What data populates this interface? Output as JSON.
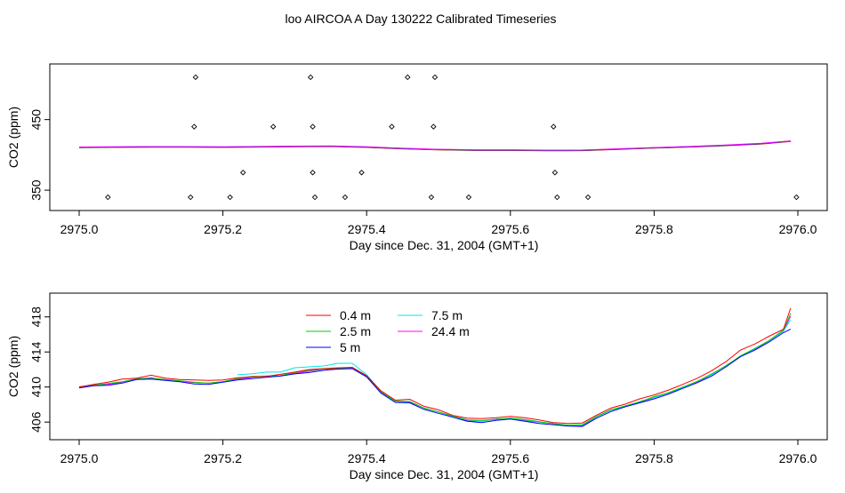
{
  "title": "loo AIRCOA A  Day 130222  Calibrated Timeseries",
  "chart_data": [
    {
      "type": "scatter",
      "panel": "top",
      "xlabel": "Day since Dec. 31, 2004 (GMT+1)",
      "ylabel": "CO2 (ppm)",
      "xlim": [
        2975.0,
        2976.0
      ],
      "ylim": [
        330,
        520
      ],
      "xticks": [
        2975.0,
        2975.2,
        2975.4,
        2975.6,
        2975.8,
        2976.0
      ],
      "xtick_labels": [
        "2975.0",
        "2975.2",
        "2975.4",
        "2975.6",
        "2975.8",
        "2976.0"
      ],
      "yticks": [
        350,
        450
      ],
      "ytick_labels": [
        "350",
        "450"
      ],
      "line": {
        "x": [
          2975.0,
          2975.05,
          2975.1,
          2975.15,
          2975.2,
          2975.25,
          2975.3,
          2975.35,
          2975.4,
          2975.45,
          2975.5,
          2975.55,
          2975.6,
          2975.65,
          2975.7,
          2975.75,
          2975.8,
          2975.85,
          2975.9,
          2975.95,
          2975.99
        ],
        "y": [
          410.2,
          410.5,
          410.9,
          410.8,
          410.5,
          411.0,
          411.5,
          411.8,
          410.5,
          408.5,
          407.0,
          406.3,
          406.3,
          405.8,
          406.0,
          407.8,
          409.5,
          411.0,
          413.0,
          415.5,
          419.0
        ]
      },
      "points": [
        {
          "x": 2975.04,
          "y": 340
        },
        {
          "x": 2975.155,
          "y": 340
        },
        {
          "x": 2975.16,
          "y": 440
        },
        {
          "x": 2975.162,
          "y": 510
        },
        {
          "x": 2975.21,
          "y": 340
        },
        {
          "x": 2975.228,
          "y": 375
        },
        {
          "x": 2975.27,
          "y": 440
        },
        {
          "x": 2975.322,
          "y": 510
        },
        {
          "x": 2975.325,
          "y": 440
        },
        {
          "x": 2975.325,
          "y": 375
        },
        {
          "x": 2975.328,
          "y": 340
        },
        {
          "x": 2975.37,
          "y": 340
        },
        {
          "x": 2975.393,
          "y": 375
        },
        {
          "x": 2975.435,
          "y": 440
        },
        {
          "x": 2975.457,
          "y": 510
        },
        {
          "x": 2975.49,
          "y": 340
        },
        {
          "x": 2975.493,
          "y": 440
        },
        {
          "x": 2975.495,
          "y": 510
        },
        {
          "x": 2975.542,
          "y": 340
        },
        {
          "x": 2975.66,
          "y": 440
        },
        {
          "x": 2975.662,
          "y": 375
        },
        {
          "x": 2975.665,
          "y": 340
        },
        {
          "x": 2975.708,
          "y": 340
        },
        {
          "x": 2975.998,
          "y": 340
        }
      ]
    },
    {
      "type": "line",
      "panel": "bottom",
      "xlabel": "Day since Dec. 31, 2004 (GMT+1)",
      "ylabel": "CO2 (ppm)",
      "xlim": [
        2975.0,
        2976.0
      ],
      "ylim": [
        404.7,
        420.0
      ],
      "xticks": [
        2975.0,
        2975.2,
        2975.4,
        2975.6,
        2975.8,
        2976.0
      ],
      "xtick_labels": [
        "2975.0",
        "2975.2",
        "2975.4",
        "2975.6",
        "2975.8",
        "2976.0"
      ],
      "yticks": [
        406,
        410,
        414,
        418
      ],
      "ytick_labels": [
        "406",
        "410",
        "414",
        "418"
      ],
      "legend": {
        "placement": "top-center",
        "columns": [
          [
            {
              "name": "0.4 m",
              "color": "#ff0000"
            },
            {
              "name": "2.5 m",
              "color": "#00cd00"
            },
            {
              "name": "5 m",
              "color": "#0000ff"
            }
          ],
          [
            {
              "name": "7.5 m",
              "color": "#00e5ee"
            },
            {
              "name": "24.4 m",
              "color": "#ff00ff"
            }
          ]
        ]
      },
      "base_series": {
        "x": [
          2975.0,
          2975.02,
          2975.04,
          2975.06,
          2975.08,
          2975.1,
          2975.12,
          2975.14,
          2975.16,
          2975.18,
          2975.2,
          2975.22,
          2975.24,
          2975.26,
          2975.28,
          2975.3,
          2975.32,
          2975.34,
          2975.36,
          2975.38,
          2975.4,
          2975.42,
          2975.44,
          2975.46,
          2975.48,
          2975.5,
          2975.52,
          2975.54,
          2975.56,
          2975.58,
          2975.6,
          2975.62,
          2975.64,
          2975.66,
          2975.68,
          2975.7,
          2975.72,
          2975.74,
          2975.76,
          2975.78,
          2975.8,
          2975.82,
          2975.84,
          2975.86,
          2975.88,
          2975.9,
          2975.92,
          2975.94,
          2975.96,
          2975.98,
          2975.99
        ],
        "y": [
          410.0,
          410.2,
          410.3,
          410.6,
          410.9,
          411.0,
          410.8,
          410.7,
          410.5,
          410.4,
          410.6,
          410.9,
          411.1,
          411.2,
          411.3,
          411.6,
          411.8,
          412.0,
          412.1,
          412.2,
          411.2,
          409.4,
          408.3,
          408.3,
          407.6,
          407.1,
          406.6,
          406.2,
          406.1,
          406.3,
          406.4,
          406.2,
          406.0,
          405.8,
          405.6,
          405.6,
          406.6,
          407.3,
          407.8,
          408.3,
          408.8,
          409.3,
          409.9,
          410.6,
          411.4,
          412.4,
          413.5,
          414.3,
          415.3,
          416.3,
          417.2
        ]
      },
      "series": [
        {
          "name": "0.4 m",
          "offsets": [
            0.0,
            0.1,
            0.25,
            0.3,
            0.1,
            0.35,
            0.2,
            0.15,
            0.3,
            0.35,
            0.2,
            0.15,
            0.05,
            0.0,
            0.15,
            0.1,
            0.2,
            0.1,
            0.1,
            0.05,
            0.1,
            0.15,
            0.2,
            0.3,
            0.2,
            0.3,
            0.15,
            0.25,
            0.3,
            0.2,
            0.25,
            0.3,
            0.25,
            0.15,
            0.25,
            0.3,
            0.2,
            0.3,
            0.25,
            0.35,
            0.3,
            0.35,
            0.4,
            0.4,
            0.45,
            0.5,
            0.7,
            0.6,
            0.5,
            0.3,
            1.8
          ]
        },
        {
          "name": "2.5 m",
          "offsets": [
            0.05,
            0.0,
            0.1,
            0.0,
            0.05,
            0.0,
            0.05,
            0.0,
            0.05,
            0.05,
            0.0,
            0.05,
            0.1,
            0.05,
            0.0,
            0.05,
            0.1,
            0.05,
            0.0,
            0.05,
            0.0,
            0.05,
            0.1,
            0.05,
            0.0,
            0.05,
            0.1,
            0.05,
            0.1,
            0.0,
            0.05,
            0.1,
            0.05,
            0.0,
            0.05,
            0.1,
            0.05,
            0.1,
            0.05,
            0.0,
            0.1,
            0.05,
            0.1,
            0.05,
            0.1,
            0.0,
            0.05,
            0.1,
            0.0,
            0.2,
            1.2
          ]
        },
        {
          "name": "5 m",
          "offsets": [
            -0.1,
            -0.05,
            -0.1,
            -0.15,
            -0.05,
            -0.1,
            -0.05,
            -0.1,
            -0.15,
            -0.1,
            -0.05,
            -0.1,
            -0.15,
            -0.1,
            -0.05,
            -0.1,
            -0.15,
            -0.1,
            -0.05,
            -0.1,
            -0.05,
            -0.1,
            -0.05,
            -0.1,
            -0.15,
            -0.1,
            -0.05,
            -0.1,
            -0.15,
            -0.1,
            -0.05,
            -0.1,
            -0.15,
            -0.1,
            -0.05,
            -0.1,
            -0.15,
            -0.1,
            -0.05,
            -0.1,
            -0.15,
            -0.1,
            -0.05,
            -0.1,
            -0.15,
            -0.1,
            -0.05,
            -0.1,
            -0.15,
            -0.1,
            -0.6
          ]
        },
        {
          "name": "7.5 m",
          "start_index": 11,
          "offsets": [
            0.0,
            0.0,
            0.0,
            0.0,
            0.0,
            0.0,
            0.0,
            0.0,
            0.0,
            0.0,
            0.0,
            0.5,
            0.4,
            0.5,
            0.4,
            0.6,
            0.5,
            0.4,
            0.6,
            0.5,
            0.2,
            0.1,
            0.0,
            0.05,
            0.0,
            0.05,
            0.0,
            0.05,
            0.0,
            0.05,
            0.0,
            0.05,
            0.0,
            0.05,
            0.0,
            0.05,
            0.0,
            0.05,
            0.0,
            0.05,
            0.0,
            0.05,
            0.0,
            0.05,
            0.0,
            0.05,
            0.0,
            0.05,
            0.0,
            0.05,
            0.5
          ]
        },
        {
          "name": "24.4 m",
          "offsets": [
            0.0,
            0.05,
            0.0,
            -0.05,
            0.0,
            0.05,
            0.0,
            -0.05,
            0.0,
            0.05,
            0.0,
            -0.05,
            0.0,
            0.05,
            0.0,
            -0.05,
            0.0,
            0.05,
            0.0,
            -0.05,
            0.0,
            0.05,
            0.0,
            -0.05,
            0.0,
            0.05,
            0.0,
            -0.05,
            0.0,
            0.05,
            0.0,
            -0.05,
            0.0,
            0.05,
            0.0,
            -0.05,
            0.0,
            0.05,
            0.0,
            -0.05,
            0.0,
            0.05,
            0.0,
            -0.05,
            0.0,
            0.05,
            0.0,
            -0.05,
            0.0,
            0.05,
            0.9
          ]
        }
      ]
    }
  ]
}
